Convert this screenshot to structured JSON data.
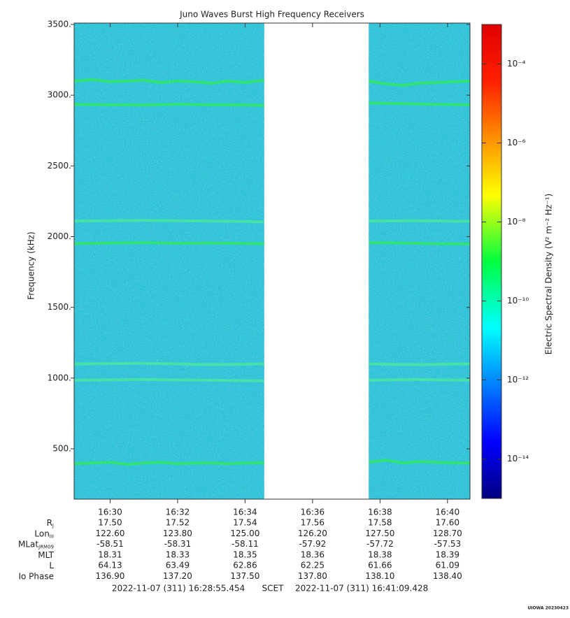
{
  "chart_data": {
    "type": "spectrogram",
    "title": "Juno Waves Burst High Frequency Receivers",
    "ylabel": "Frequency (kHz)",
    "ylim": [
      144,
      3510
    ],
    "yticks": [
      {
        "value": 500,
        "label": "500."
      },
      {
        "value": 1000,
        "label": "1000."
      },
      {
        "value": 1500,
        "label": "1500."
      },
      {
        "value": 2000,
        "label": "2000."
      },
      {
        "value": 2500,
        "label": "2500."
      },
      {
        "value": 3000,
        "label": "3000."
      },
      {
        "value": 3500,
        "label": "3500."
      }
    ],
    "xlim": [
      "16:28:56",
      "16:40:40"
    ],
    "xticks": [
      "16:30",
      "16:32",
      "16:34",
      "16:36",
      "16:38",
      "16:40"
    ],
    "background_color": "#2ac4d4",
    "data_segments": [
      [
        "16:28:56",
        "16:34:34"
      ],
      [
        "16:37:40",
        "16:40:40"
      ]
    ],
    "series": [
      {
        "color": "#30e860",
        "x": [
          "16:28:56",
          "16:29:30",
          "16:30:00",
          "16:30:30",
          "16:31:00",
          "16:31:30",
          "16:32:00",
          "16:32:30",
          "16:33:00",
          "16:33:30",
          "16:34:00",
          "16:34:34",
          "16:36:00",
          "16:37:40",
          "16:38:10",
          "16:38:40",
          "16:39:10",
          "16:39:40",
          "16:40:10",
          "16:40:40"
        ],
        "values": [
          3100,
          3110,
          3095,
          3100,
          3105,
          3090,
          3100,
          3095,
          3085,
          3100,
          3090,
          3105,
          null,
          3100,
          3080,
          3070,
          3085,
          3090,
          3095,
          3100
        ]
      },
      {
        "color": "#30e860",
        "x": [
          "16:28:56",
          "16:30:00",
          "16:31:00",
          "16:32:00",
          "16:33:00",
          "16:34:00",
          "16:34:34",
          "16:36:00",
          "16:37:40",
          "16:38:40",
          "16:39:40",
          "16:40:40"
        ],
        "values": [
          2935,
          2932,
          2930,
          2935,
          2932,
          2930,
          2928,
          null,
          2945,
          2940,
          2935,
          2932
        ]
      },
      {
        "color": "#48e8a0",
        "x": [
          "16:28:56",
          "16:31:00",
          "16:33:00",
          "16:34:34",
          "16:36:00",
          "16:37:40",
          "16:39:00",
          "16:40:40"
        ],
        "values": [
          2110,
          2115,
          2110,
          2105,
          null,
          2110,
          2112,
          2108
        ]
      },
      {
        "color": "#30e860",
        "x": [
          "16:28:56",
          "16:30:00",
          "16:31:00",
          "16:32:00",
          "16:33:00",
          "16:34:00",
          "16:34:34",
          "16:36:00",
          "16:37:40",
          "16:38:40",
          "16:39:40",
          "16:40:40"
        ],
        "values": [
          1950,
          1955,
          1958,
          1953,
          1955,
          1952,
          1950,
          null,
          1958,
          1955,
          1950,
          1948
        ]
      },
      {
        "color": "#48e8a0",
        "x": [
          "16:28:56",
          "16:31:00",
          "16:33:00",
          "16:34:34",
          "16:36:00",
          "16:37:40",
          "16:39:00",
          "16:40:40"
        ],
        "values": [
          1100,
          1105,
          1095,
          1100,
          null,
          1100,
          1095,
          1100
        ]
      },
      {
        "color": "#48e8a0",
        "x": [
          "16:28:56",
          "16:31:00",
          "16:33:00",
          "16:34:34",
          "16:36:00",
          "16:37:40",
          "16:39:00",
          "16:40:40"
        ],
        "values": [
          985,
          990,
          985,
          980,
          null,
          985,
          990,
          985
        ]
      },
      {
        "color": "#30e860",
        "x": [
          "16:28:56",
          "16:29:30",
          "16:30:00",
          "16:30:30",
          "16:31:00",
          "16:31:30",
          "16:32:00",
          "16:32:30",
          "16:33:00",
          "16:33:30",
          "16:34:00",
          "16:34:34",
          "16:36:00",
          "16:37:40",
          "16:38:10",
          "16:38:40",
          "16:39:10",
          "16:39:40",
          "16:40:10",
          "16:40:40"
        ],
        "values": [
          395,
          400,
          405,
          390,
          400,
          405,
          395,
          400,
          400,
          395,
          400,
          400,
          null,
          405,
          420,
          400,
          410,
          405,
          400,
          400
        ]
      }
    ],
    "colorbar": {
      "label": "Electric Spectral Density (V² m⁻² Hz⁻¹)",
      "scale": "log",
      "lim": [
        1e-15,
        0.001
      ],
      "ticks": [
        {
          "value": 1e-14,
          "label": "10⁻¹⁴"
        },
        {
          "value": 1e-12,
          "label": "10⁻¹²"
        },
        {
          "value": 1e-10,
          "label": "10⁻¹⁰"
        },
        {
          "value": 1e-08,
          "label": "10⁻⁸"
        },
        {
          "value": 1e-06,
          "label": "10⁻⁶"
        },
        {
          "value": 0.0001,
          "label": "10⁻⁴"
        }
      ]
    },
    "ephemeris": [
      {
        "label": "R",
        "sub": "J",
        "values": [
          "17.50",
          "17.52",
          "17.54",
          "17.56",
          "17.58",
          "17.60"
        ]
      },
      {
        "label": "Lon",
        "sub": "III",
        "values": [
          "122.60",
          "123.80",
          "125.00",
          "126.20",
          "127.50",
          "128.70"
        ]
      },
      {
        "label": "MLat",
        "sub": "JRM09",
        "values": [
          "-58.51",
          "-58.31",
          "-58.11",
          "-57.92",
          "-57.72",
          "-57.53"
        ]
      },
      {
        "label": "MLT",
        "values": [
          "18.31",
          "18.33",
          "18.35",
          "18.36",
          "18.38",
          "18.39"
        ]
      },
      {
        "label": "L",
        "values": [
          "64.13",
          "63.49",
          "62.86",
          "62.25",
          "61.66",
          "61.09"
        ]
      },
      {
        "label": "Io Phase",
        "values": [
          "136.90",
          "137.20",
          "137.50",
          "137.80",
          "138.10",
          "138.40"
        ]
      }
    ],
    "footer": {
      "start": "2022-11-07 (311) 16:28:55.454",
      "middle": "SCET",
      "end": "2022-11-07 (311) 16:41:09.428"
    },
    "credit": "UIOWA 20230423"
  }
}
